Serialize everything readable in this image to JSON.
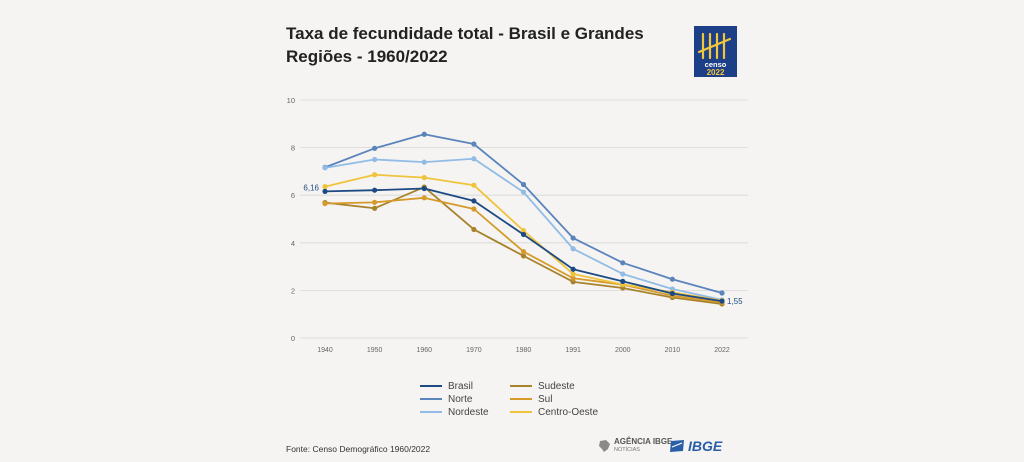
{
  "title": "Taxa de fecundidade total - Brasil e Grandes Regiões - 1960/2022",
  "logos": {
    "censo_word": "censo",
    "censo_year": "2022",
    "agencia_name": "AGÊNCIA IBGE",
    "agencia_sub": "NOTÍCIAS",
    "ibge": "IBGE"
  },
  "source": "Fonte: Censo Demográfico 1960/2022",
  "colors": {
    "background": "#f5f4f2",
    "grid": "#d6d6d6",
    "brasil": "#1d4a82",
    "norte": "#5a84bb",
    "nordeste": "#92bce6",
    "sudeste": "#a8832c",
    "sul": "#d69a2b",
    "centro_oeste": "#f0c33c"
  },
  "chart_data": {
    "type": "line",
    "title": "Taxa de fecundidade total - Brasil e Grandes Regiões - 1960/2022",
    "xlabel": "",
    "ylabel": "",
    "x": [
      "1940",
      "1950",
      "1960",
      "1970",
      "1980",
      "1991",
      "2000",
      "2010",
      "2022"
    ],
    "ylim": [
      0,
      10
    ],
    "yticks": [
      0,
      2,
      4,
      6,
      8,
      10
    ],
    "grid": true,
    "legend_position": "bottom",
    "series": [
      {
        "name": "Brasil",
        "color": "#1d4a82",
        "values": [
          6.16,
          6.21,
          6.28,
          5.76,
          4.35,
          2.89,
          2.38,
          1.87,
          1.55
        ]
      },
      {
        "name": "Norte",
        "color": "#5a84bb",
        "values": [
          7.17,
          7.97,
          8.56,
          8.15,
          6.45,
          4.2,
          3.16,
          2.47,
          1.89
        ]
      },
      {
        "name": "Nordeste",
        "color": "#92bce6",
        "values": [
          7.15,
          7.5,
          7.39,
          7.53,
          6.13,
          3.75,
          2.69,
          2.06,
          1.6
        ]
      },
      {
        "name": "Sudeste",
        "color": "#a8832c",
        "values": [
          5.69,
          5.45,
          6.34,
          4.56,
          3.45,
          2.36,
          2.1,
          1.7,
          1.43
        ]
      },
      {
        "name": "Sul",
        "color": "#d69a2b",
        "values": [
          5.65,
          5.7,
          5.89,
          5.42,
          3.63,
          2.51,
          2.24,
          1.78,
          1.5
        ]
      },
      {
        "name": "Centro-Oeste",
        "color": "#f0c33c",
        "values": [
          6.36,
          6.86,
          6.74,
          6.42,
          4.51,
          2.69,
          2.25,
          1.92,
          1.57
        ]
      }
    ],
    "annotations": [
      {
        "series": "Brasil",
        "x": "1940",
        "label": "6,16"
      },
      {
        "series": "Brasil",
        "x": "2022",
        "label": "1,55"
      }
    ]
  }
}
